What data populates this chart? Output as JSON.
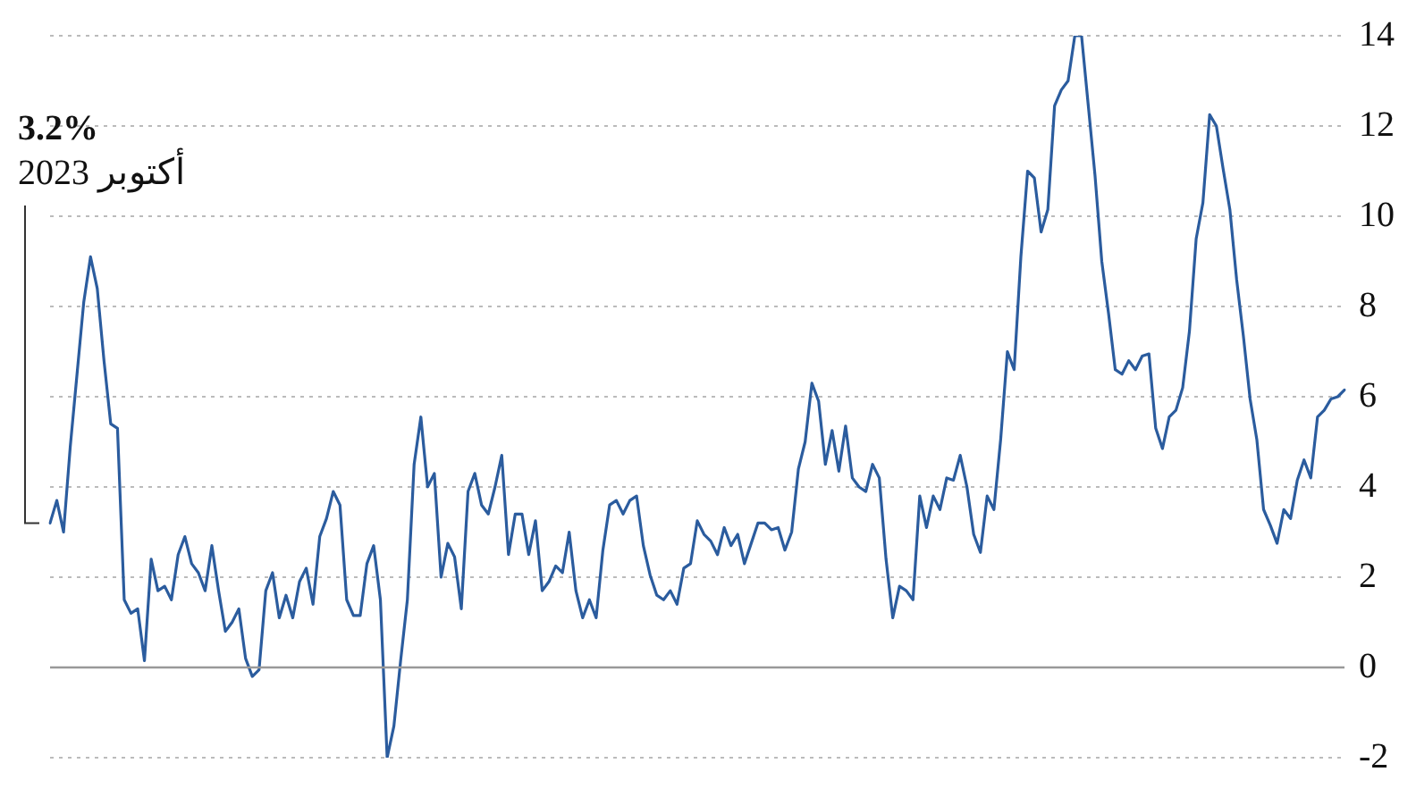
{
  "chart_data": {
    "type": "line",
    "categories": [
      null,
      null,
      null,
      null,
      null,
      null,
      null,
      null,
      null,
      null,
      null,
      null,
      null,
      null,
      null,
      null,
      null,
      null,
      null,
      null,
      null,
      null,
      null,
      null,
      null,
      null,
      null,
      null,
      null,
      null,
      null,
      null,
      null,
      null,
      null,
      null,
      null,
      null,
      null,
      null,
      null,
      null,
      null,
      null,
      null,
      null,
      null,
      null,
      null,
      null,
      null,
      null,
      null,
      null,
      null,
      null,
      null,
      null,
      null,
      null,
      null,
      null,
      null,
      null,
      null,
      null,
      null,
      null,
      null,
      null,
      null,
      null,
      null,
      null,
      null,
      null,
      null,
      null,
      null,
      null,
      null,
      null,
      null,
      null,
      null,
      null,
      null,
      null,
      null,
      null,
      null,
      null,
      null,
      null,
      null,
      null,
      null,
      null,
      null,
      null,
      null,
      null,
      null,
      null,
      null,
      null,
      null,
      null,
      null,
      null,
      null,
      null,
      null,
      null,
      null,
      null,
      null,
      null,
      null,
      null,
      null,
      null,
      null,
      null,
      null,
      null,
      null,
      null,
      null,
      null,
      null,
      null,
      null,
      null,
      null,
      null,
      null,
      null,
      null,
      null,
      null,
      null,
      null,
      null,
      null,
      null,
      null,
      null,
      null,
      null,
      null,
      null,
      null,
      null,
      null,
      null,
      null,
      null,
      null,
      null,
      null,
      null,
      null,
      null,
      null,
      null,
      null,
      null,
      null,
      null,
      null,
      null,
      null,
      null,
      null,
      null,
      null,
      null,
      null,
      null,
      null,
      null,
      null,
      null,
      null,
      null,
      null,
      null,
      null,
      null,
      null,
      null,
      null
    ],
    "series": [
      {
        "color": "#2b5c9e",
        "values": [
          3.2,
          3.7,
          3.0,
          4.9,
          6.5,
          8.1,
          9.1,
          8.4,
          6.8,
          5.4,
          5.3,
          1.5,
          1.2,
          1.3,
          0.15,
          2.4,
          1.7,
          1.8,
          1.5,
          2.5,
          2.9,
          2.3,
          2.1,
          1.7,
          2.7,
          1.7,
          0.8,
          1.0,
          1.3,
          0.2,
          -0.2,
          -0.05,
          1.7,
          2.1,
          1.1,
          1.6,
          1.1,
          1.9,
          2.2,
          1.4,
          2.9,
          3.3,
          3.9,
          3.6,
          1.5,
          1.15,
          1.15,
          2.3,
          2.7,
          1.5,
          -2.0,
          -1.3,
          0.15,
          1.5,
          4.5,
          5.55,
          4.0,
          4.3,
          2.0,
          2.75,
          2.45,
          1.3,
          3.9,
          4.3,
          3.6,
          3.4,
          4.0,
          4.7,
          2.5,
          3.4,
          3.4,
          2.5,
          3.25,
          1.7,
          1.9,
          2.25,
          2.1,
          3.0,
          1.7,
          1.1,
          1.5,
          1.1,
          2.6,
          3.6,
          3.7,
          3.4,
          3.7,
          3.8,
          2.7,
          2.05,
          1.6,
          1.5,
          1.7,
          1.4,
          2.2,
          2.3,
          3.25,
          2.95,
          2.8,
          2.5,
          3.1,
          2.7,
          2.95,
          2.3,
          2.75,
          3.2,
          3.2,
          3.05,
          3.1,
          2.6,
          3.0,
          4.4,
          5.0,
          6.3,
          5.9,
          4.5,
          5.25,
          4.35,
          5.35,
          4.2,
          4.0,
          3.9,
          4.5,
          4.2,
          2.4,
          1.1,
          1.8,
          1.7,
          1.5,
          3.8,
          3.1,
          3.8,
          3.5,
          4.2,
          4.15,
          4.7,
          4.0,
          2.95,
          2.55,
          3.8,
          3.5,
          5.05,
          7.0,
          6.6,
          9.1,
          11.0,
          10.85,
          9.65,
          10.15,
          12.45,
          12.8,
          13.0,
          14.0,
          14.0,
          12.45,
          10.9,
          9.0,
          7.85,
          6.6,
          6.5,
          6.8,
          6.6,
          6.9,
          6.95,
          5.3,
          4.85,
          5.55,
          5.7,
          6.2,
          7.45,
          9.5,
          10.3,
          12.25,
          12.0,
          11.05,
          10.15,
          8.6,
          7.35,
          5.95,
          5.05,
          3.5,
          3.15,
          2.75,
          3.5,
          3.3,
          4.15,
          4.6,
          4.2,
          5.55,
          5.7,
          5.95,
          6.0,
          6.15
        ]
      }
    ],
    "ylim": [
      -2,
      14
    ],
    "yticks": [
      -2,
      0,
      2,
      4,
      6,
      8,
      10,
      12,
      14
    ],
    "grid": "y",
    "legend": false,
    "marker": "none",
    "line_style": "solid",
    "tick_labels": "y",
    "ref_lines": [
      {
        "axis": "y",
        "value": 0,
        "color": "#999999",
        "line_style": "solid"
      }
    ],
    "annotations": [
      "3.2%",
      "أكتوبر 2023"
    ]
  }
}
